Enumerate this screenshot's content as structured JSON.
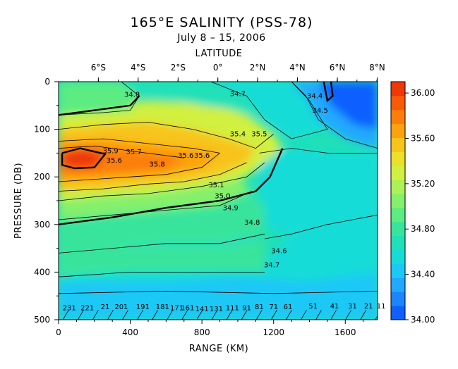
{
  "chart_data": {
    "type": "heatmap",
    "title": "165°E SALINITY (PSS-78)",
    "subtitle": "July 8 – 15, 2006",
    "top_axis_title": "LATITUDE",
    "xlabel": "RANGE (KM)",
    "ylabel": "PRESSURE (DB)",
    "xlim": [
      0,
      1780
    ],
    "ylim": [
      0,
      500
    ],
    "y_inverted": true,
    "x_ticks": [
      0,
      400,
      800,
      1200,
      1600
    ],
    "x_tick_labels": [
      "0",
      "400",
      "800",
      "1200",
      "1600"
    ],
    "y_ticks": [
      0,
      100,
      200,
      300,
      400,
      500
    ],
    "y_tick_labels": [
      "0",
      "100",
      "200",
      "300",
      "400",
      "500"
    ],
    "top_ticks": [
      {
        "x": 222,
        "label": "6°S"
      },
      {
        "x": 444,
        "label": "4°S"
      },
      {
        "x": 667,
        "label": "2°S"
      },
      {
        "x": 889,
        "label": "0°"
      },
      {
        "x": 1111,
        "label": "2°N"
      },
      {
        "x": 1333,
        "label": "4°N"
      },
      {
        "x": 1556,
        "label": "6°N"
      },
      {
        "x": 1778,
        "label": "8°N"
      }
    ],
    "colorbar": {
      "min": 34.0,
      "max": 36.1,
      "labels": [
        "34.00",
        "34.40",
        "34.80",
        "35.20",
        "35.60",
        "36.00"
      ],
      "label_values": [
        34.0,
        34.4,
        34.8,
        35.2,
        35.6,
        36.0
      ],
      "colors": [
        "#1060ff",
        "#1c86ff",
        "#22a8ff",
        "#1cc8f6",
        "#16dcd8",
        "#20e0b8",
        "#38e49c",
        "#5cec82",
        "#84f06c",
        "#acf256",
        "#d2f040",
        "#ece02a",
        "#f8c41c",
        "#fca20e",
        "#fc7e08",
        "#f85a08",
        "#ee3808"
      ]
    },
    "contour_labels": [
      {
        "x": 410,
        "y": 32,
        "text": "34.8"
      },
      {
        "x": 1000,
        "y": 30,
        "text": "34.7"
      },
      {
        "x": 1430,
        "y": 35,
        "text": "34.4"
      },
      {
        "x": 1460,
        "y": 65,
        "text": "34.5"
      },
      {
        "x": 1000,
        "y": 115,
        "text": "35.4"
      },
      {
        "x": 1120,
        "y": 115,
        "text": "35.5"
      },
      {
        "x": 290,
        "y": 150,
        "text": "35.9"
      },
      {
        "x": 420,
        "y": 152,
        "text": "35.7"
      },
      {
        "x": 310,
        "y": 170,
        "text": "35.6"
      },
      {
        "x": 550,
        "y": 178,
        "text": "35.8"
      },
      {
        "x": 710,
        "y": 160,
        "text": "35.6"
      },
      {
        "x": 800,
        "y": 160,
        "text": "35.6"
      },
      {
        "x": 880,
        "y": 222,
        "text": "35.1"
      },
      {
        "x": 915,
        "y": 245,
        "text": "35.0"
      },
      {
        "x": 960,
        "y": 270,
        "text": "34.9"
      },
      {
        "x": 1080,
        "y": 300,
        "text": "34.8"
      },
      {
        "x": 1190,
        "y": 390,
        "text": "34.7"
      },
      {
        "x": 1230,
        "y": 360,
        "text": "34.6"
      },
      {
        "x": 60,
        "y": 480,
        "text": "231"
      },
      {
        "x": 160,
        "y": 480,
        "text": "221"
      },
      {
        "x": 260,
        "y": 478,
        "text": "21"
      },
      {
        "x": 350,
        "y": 478,
        "text": "201"
      },
      {
        "x": 470,
        "y": 478,
        "text": "191"
      },
      {
        "x": 580,
        "y": 478,
        "text": "181"
      },
      {
        "x": 660,
        "y": 480,
        "text": "171"
      },
      {
        "x": 720,
        "y": 480,
        "text": "161"
      },
      {
        "x": 800,
        "y": 482,
        "text": "141"
      },
      {
        "x": 880,
        "y": 482,
        "text": "131"
      },
      {
        "x": 970,
        "y": 480,
        "text": "111"
      },
      {
        "x": 1050,
        "y": 480,
        "text": "91"
      },
      {
        "x": 1120,
        "y": 478,
        "text": "81"
      },
      {
        "x": 1200,
        "y": 478,
        "text": "71"
      },
      {
        "x": 1280,
        "y": 478,
        "text": "61"
      },
      {
        "x": 1420,
        "y": 476,
        "text": "51"
      },
      {
        "x": 1540,
        "y": 476,
        "text": "41"
      },
      {
        "x": 1640,
        "y": 476,
        "text": "31"
      },
      {
        "x": 1730,
        "y": 476,
        "text": "21"
      },
      {
        "x": 1800,
        "y": 476,
        "text": "11"
      }
    ]
  }
}
